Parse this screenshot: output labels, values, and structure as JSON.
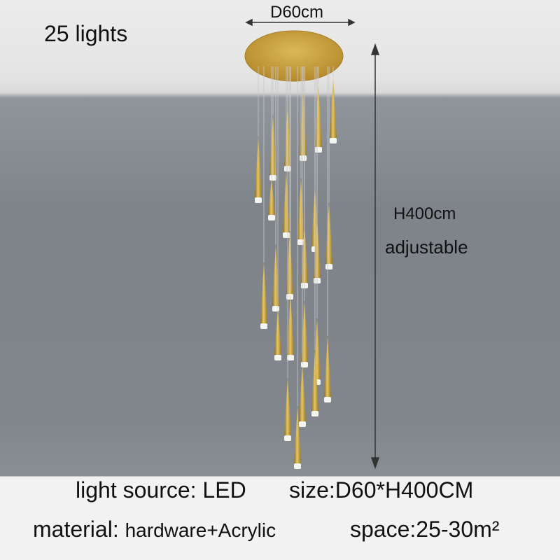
{
  "title": "25 lights",
  "dimensions": {
    "diameter": "D60cm",
    "height": "H400cm",
    "height_note": "adjustable"
  },
  "specs": {
    "light_source": "light source:  LED",
    "size": "size:D60*H400CM",
    "material_label": "material:",
    "material_value": "hardware+Acrylic",
    "space": "space:25-30m²"
  },
  "colors": {
    "brass": "#c9a23a",
    "wall": "#7e848a",
    "ceiling": "#e6e6e6"
  }
}
